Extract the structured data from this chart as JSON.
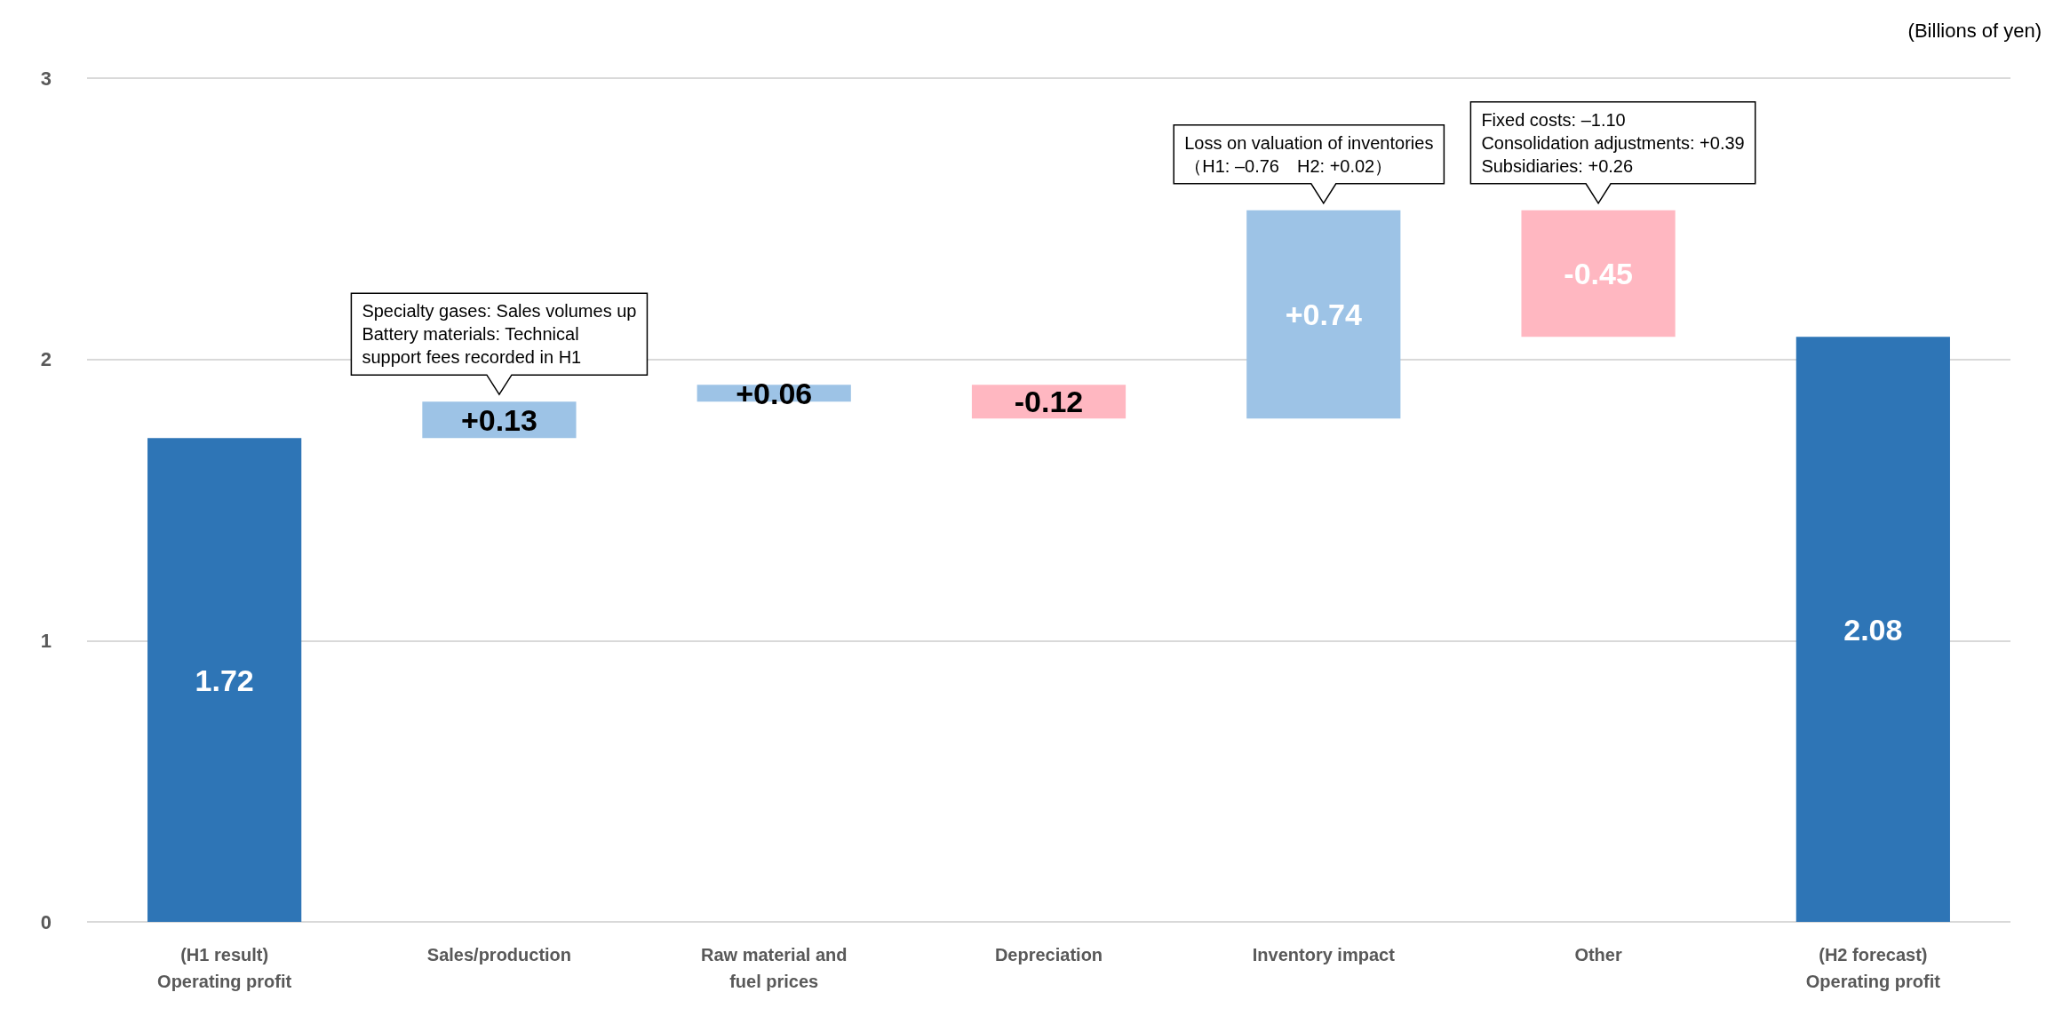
{
  "chart_data": {
    "type": "bar",
    "ylabel": "(Billions of yen)",
    "categories": [
      "(H1 result)\nOperating profit",
      "Sales/production",
      "Raw material and\nfuel prices",
      "Depreciation",
      "Inventory impact",
      "Other",
      "(H2 forecast)\nOperating profit"
    ],
    "values": [
      1.72,
      0.13,
      0.06,
      -0.12,
      0.74,
      -0.45,
      2.08
    ],
    "base": [
      0,
      1.72,
      1.85,
      1.91,
      1.79,
      2.53,
      0
    ],
    "colors": [
      "#2e75b6",
      "#9dc3e6",
      "#9dc3e6",
      "#ffb7c1",
      "#9dc3e6",
      "#ffb7c1",
      "#2e75b6"
    ],
    "value_labels": [
      "1.72",
      "+0.13",
      "+0.06",
      "-0.12",
      "+0.74",
      "-0.45",
      "2.08"
    ],
    "ylim": [
      0,
      3
    ],
    "yticks": [
      0,
      1,
      2,
      3
    ],
    "grid": "y",
    "annotations": [
      {
        "text": "Specialty gases: Sales volumes up\nBattery materials: Technical\nsupport fees recorded in H1",
        "x": "Sales/production",
        "y": 1.85
      },
      {
        "text": "Loss on valuation of inventories\n（H1: –0.76　H2: +0.02）",
        "x": "Inventory impact",
        "y": 2.53
      },
      {
        "text": "Fixed costs: –1.10\nConsolidation adjustments: +0.39\nSubsidiaries: +0.26",
        "x": "Other",
        "y": 2.53
      }
    ]
  }
}
